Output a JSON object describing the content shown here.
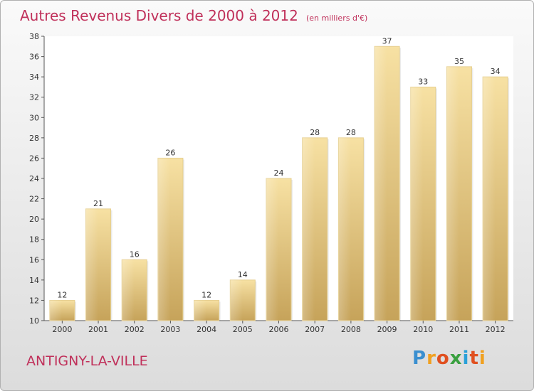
{
  "title": "Autres Revenus Divers de 2000 à 2012",
  "unit_note": "(en milliers d'€)",
  "commune": "ANTIGNY-LA-VILLE",
  "logo": {
    "text": "Proxiti",
    "letters": [
      "P",
      "r",
      "o",
      "x",
      "i",
      "t",
      "i"
    ],
    "colors": [
      "#3a8fd0",
      "#f0a020",
      "#e05020",
      "#3aa040",
      "#2aa0d8",
      "#e05020",
      "#f0a020"
    ]
  },
  "colors": {
    "title": "#c0305a",
    "bar_top": "#f7e1a3",
    "bar_bottom": "#c6a35a"
  },
  "chart_data": {
    "type": "bar",
    "title": "Autres Revenus Divers de 2000 à 2012",
    "subtitle": "(en milliers d'€)",
    "categories": [
      "2000",
      "2001",
      "2002",
      "2003",
      "2004",
      "2005",
      "2006",
      "2007",
      "2008",
      "2009",
      "2010",
      "2011",
      "2012"
    ],
    "values": [
      12,
      21,
      16,
      26,
      12,
      14,
      24,
      28,
      28,
      37,
      33,
      35,
      34
    ],
    "data_labels": [
      "12",
      "21",
      "16",
      "26",
      "12",
      "14",
      "24",
      "28",
      "28",
      "37",
      "33",
      "35",
      "34"
    ],
    "yticks": [
      10,
      12,
      14,
      16,
      18,
      20,
      22,
      24,
      26,
      28,
      30,
      32,
      34,
      36,
      38
    ],
    "ylim": [
      10,
      38
    ],
    "grid": false,
    "legend": "none"
  }
}
